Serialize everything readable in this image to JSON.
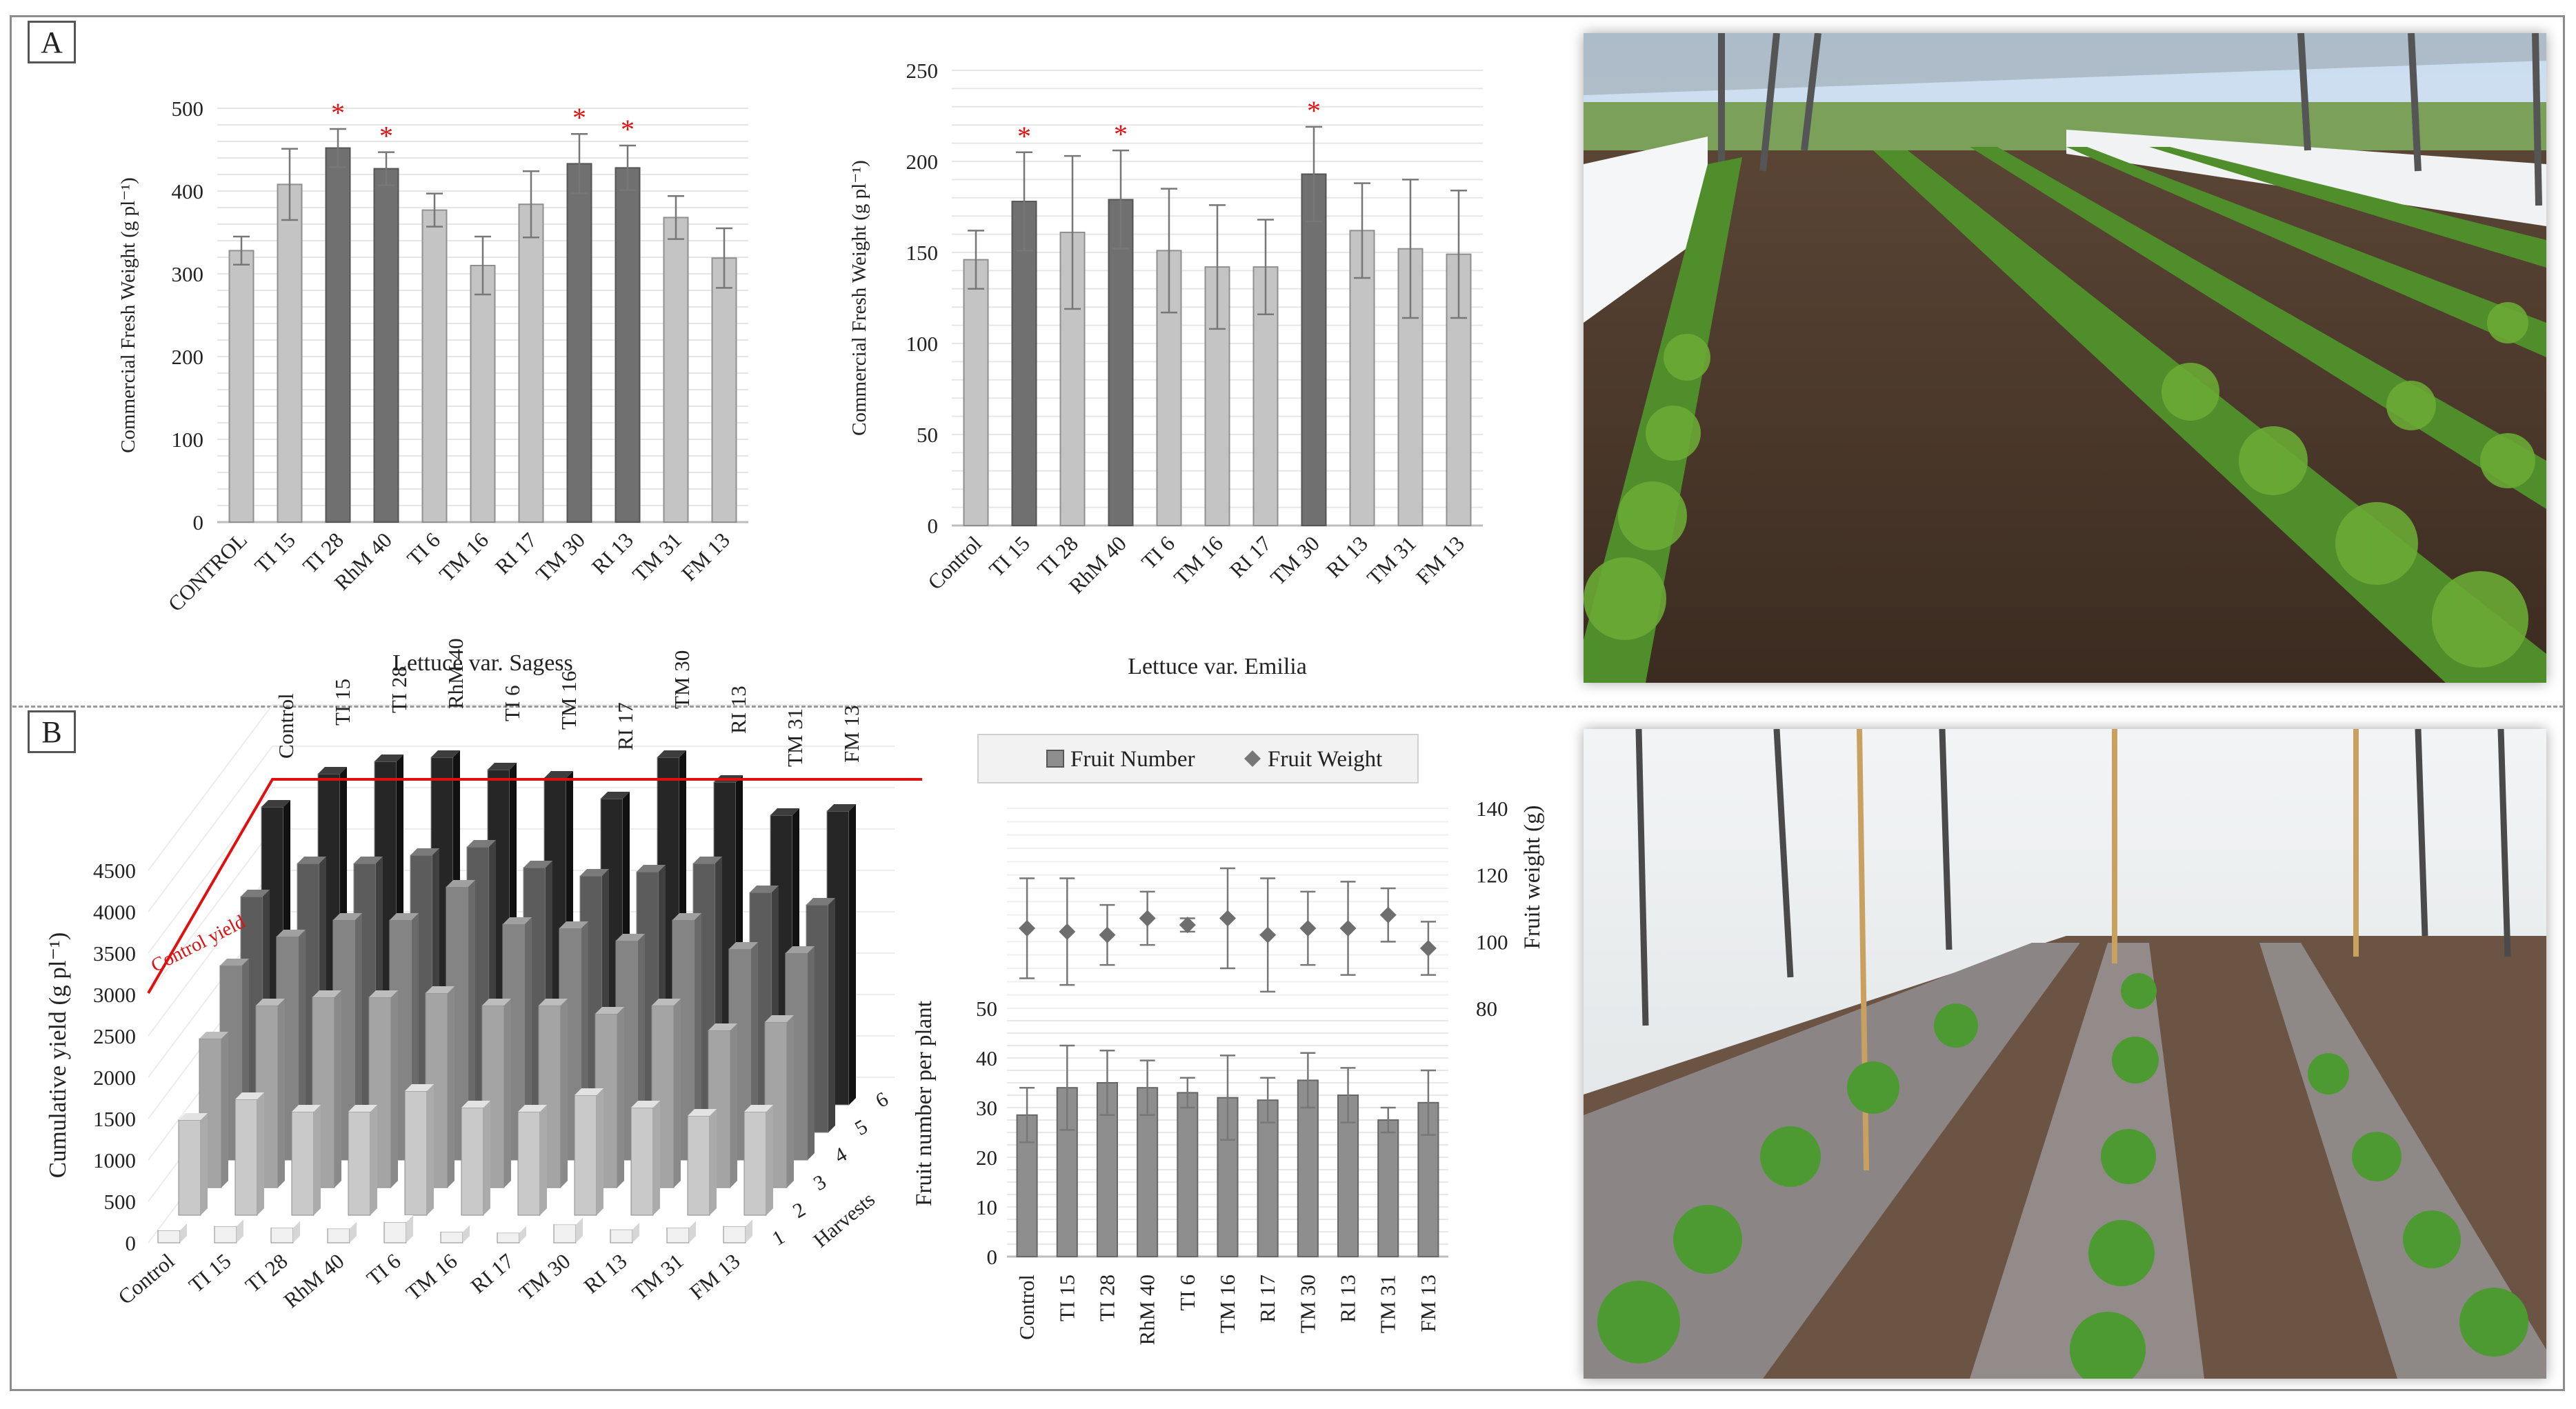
{
  "panels": {
    "a_label": "A",
    "b_label": "B"
  },
  "chart_data": [
    {
      "id": "sagess",
      "type": "bar",
      "xlabel": "Lettuce var. Sagess",
      "ylabel": "Commercial Fresh Weight (g pl⁻¹)",
      "ylim": [
        0,
        500
      ],
      "yticks": [
        0,
        100,
        200,
        300,
        400,
        500
      ],
      "grid": true,
      "categories": [
        "CONTROL",
        "TI 15",
        "TI 28",
        "RhM 40",
        "TI 6",
        "TM 16",
        "RI 17",
        "TM 30",
        "RI 13",
        "TM 31",
        "FM 13"
      ],
      "values": [
        328,
        408,
        452,
        427,
        377,
        310,
        384,
        433,
        428,
        368,
        319
      ],
      "errors": [
        17,
        43,
        23,
        20,
        20,
        35,
        40,
        36,
        27,
        26,
        36
      ],
      "significant": [
        false,
        false,
        true,
        true,
        false,
        false,
        false,
        true,
        true,
        false,
        false
      ],
      "significance_mark": "*"
    },
    {
      "id": "emilia",
      "type": "bar",
      "xlabel": "Lettuce var. Emilia",
      "ylabel": "Commercial Fresh Weight (g pl⁻¹)",
      "ylim": [
        0,
        250
      ],
      "yticks": [
        0,
        50,
        100,
        150,
        200,
        250
      ],
      "grid": true,
      "categories": [
        "Control",
        "TI 15",
        "TI 28",
        "RhM 40",
        "TI 6",
        "TM 16",
        "RI 17",
        "TM 30",
        "RI 13",
        "TM 31",
        "FM 13"
      ],
      "values": [
        146,
        178,
        161,
        179,
        151,
        142,
        142,
        193,
        162,
        152,
        149
      ],
      "errors": [
        16,
        27,
        42,
        27,
        34,
        34,
        26,
        26,
        26,
        38,
        35
      ],
      "significant": [
        false,
        true,
        false,
        true,
        false,
        false,
        false,
        true,
        false,
        false,
        false
      ],
      "significance_mark": "*"
    },
    {
      "id": "cumulative",
      "type": "bar",
      "subtype": "3d-cumulative",
      "ylabel": "Cumulative yield (g pl⁻¹)",
      "zlabel": "Harvests",
      "ylim": [
        0,
        4500
      ],
      "yticks": [
        0,
        500,
        1000,
        1500,
        2000,
        2500,
        3000,
        3500,
        4000,
        4500
      ],
      "categories": [
        "Control",
        "TI 15",
        "TI 28",
        "RhM 40",
        "TI 6",
        "TM 16",
        "RI 17",
        "TM 30",
        "RI 13",
        "TM 31",
        "FM 13"
      ],
      "harvests": [
        "1",
        "2",
        "3",
        "4",
        "5",
        "6"
      ],
      "series": [
        {
          "name": "1",
          "values": [
            150,
            200,
            180,
            170,
            250,
            130,
            120,
            220,
            160,
            180,
            200
          ]
        },
        {
          "name": "2",
          "values": [
            1150,
            1400,
            1250,
            1250,
            1500,
            1300,
            1250,
            1450,
            1300,
            1200,
            1250
          ]
        },
        {
          "name": "3",
          "values": [
            1800,
            2200,
            2300,
            2300,
            2350,
            2200,
            2200,
            2100,
            2200,
            1900,
            2000
          ]
        },
        {
          "name": "4",
          "values": [
            2350,
            2700,
            2900,
            2900,
            3300,
            2850,
            2800,
            2650,
            2900,
            2550,
            2500
          ]
        },
        {
          "name": "5",
          "values": [
            2850,
            3250,
            3250,
            3350,
            3450,
            3200,
            3100,
            3150,
            3250,
            2900,
            2750
          ]
        },
        {
          "name": "6",
          "values": [
            3600,
            4000,
            4150,
            4200,
            4050,
            3950,
            3700,
            4200,
            3900,
            3500,
            3550
          ]
        }
      ],
      "annotation": "Control yield",
      "annotation_value": 3600
    },
    {
      "id": "fruit",
      "type": "bar",
      "subtype": "bar-with-points",
      "legend": [
        "Fruit Number",
        "Fruit Weight"
      ],
      "legend_position": "top",
      "ylabel": "Fruit number per plant",
      "y2label": "Fruit weight (g)",
      "ylim": [
        0,
        50
      ],
      "yticks": [
        0,
        10,
        20,
        30,
        40,
        50
      ],
      "y2lim": [
        80,
        140
      ],
      "y2ticks": [
        80,
        100,
        120,
        140
      ],
      "grid": true,
      "categories": [
        "Control",
        "TI 15",
        "TI 28",
        "RhM 40",
        "TI 6",
        "TM 16",
        "RI 17",
        "TM 30",
        "RI 13",
        "TM 31",
        "FM 13"
      ],
      "series": [
        {
          "name": "Fruit Number",
          "values": [
            28.5,
            34,
            35,
            34,
            33,
            32,
            31.5,
            35.5,
            32.5,
            27.5,
            31
          ],
          "errors": [
            5.5,
            8.5,
            6.5,
            5.5,
            3,
            8.5,
            4.5,
            5.5,
            5.5,
            2.5,
            6.5
          ]
        },
        {
          "name": "Fruit Weight",
          "values": [
            104,
            103,
            102,
            107,
            105,
            107,
            102,
            104,
            104,
            108,
            98
          ],
          "errors": [
            15,
            16,
            9,
            8,
            2,
            15,
            17,
            11,
            14,
            8,
            8
          ]
        }
      ]
    }
  ],
  "photos": {
    "lettuce": {
      "description_icon": "lettuce-field-photo"
    },
    "tomato": {
      "description_icon": "tomato-greenhouse-photo"
    }
  }
}
